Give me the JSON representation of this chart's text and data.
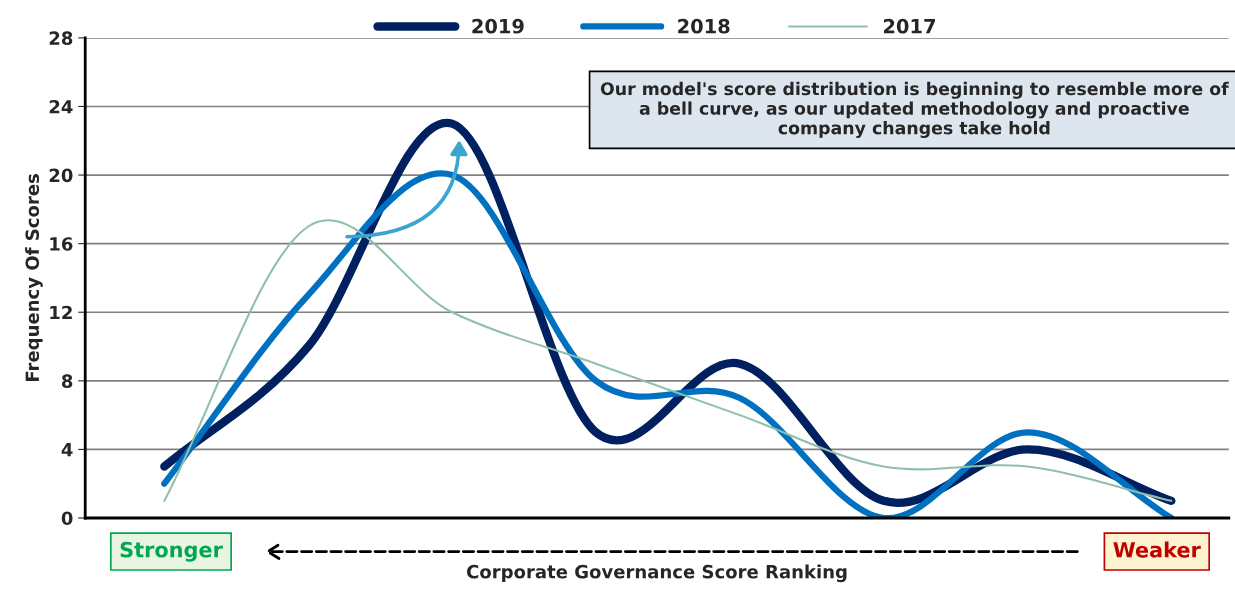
{
  "chart_data": {
    "type": "line",
    "xlabel": "Corporate Governance Score Ranking",
    "ylabel": "Frequency Of Scores",
    "categories": [
      null,
      null,
      null,
      null,
      null,
      null,
      null,
      null
    ],
    "series": [
      {
        "name": "2019",
        "color": "#002060",
        "values": [
          3,
          10,
          23,
          5,
          9,
          1,
          4,
          1
        ]
      },
      {
        "name": "2018",
        "color": "#0070c0",
        "values": [
          2,
          13,
          20,
          8,
          7,
          0,
          5,
          0
        ]
      },
      {
        "name": "2017",
        "color": "#8fbfaa",
        "values": [
          1,
          17,
          12,
          9,
          6,
          3,
          3,
          1
        ]
      }
    ],
    "ylim": [
      0,
      28
    ],
    "yticks": [
      0,
      4,
      8,
      12,
      16,
      20,
      24,
      28
    ],
    "grid": "y",
    "legend": "top",
    "marker": "none",
    "line_style": "solid",
    "annotations": [
      "Our model's score distribution is beginning to resemble more of a bell curve, as our updated methodology and proactive company changes take hold",
      "Stronger",
      "Weaker"
    ]
  }
}
